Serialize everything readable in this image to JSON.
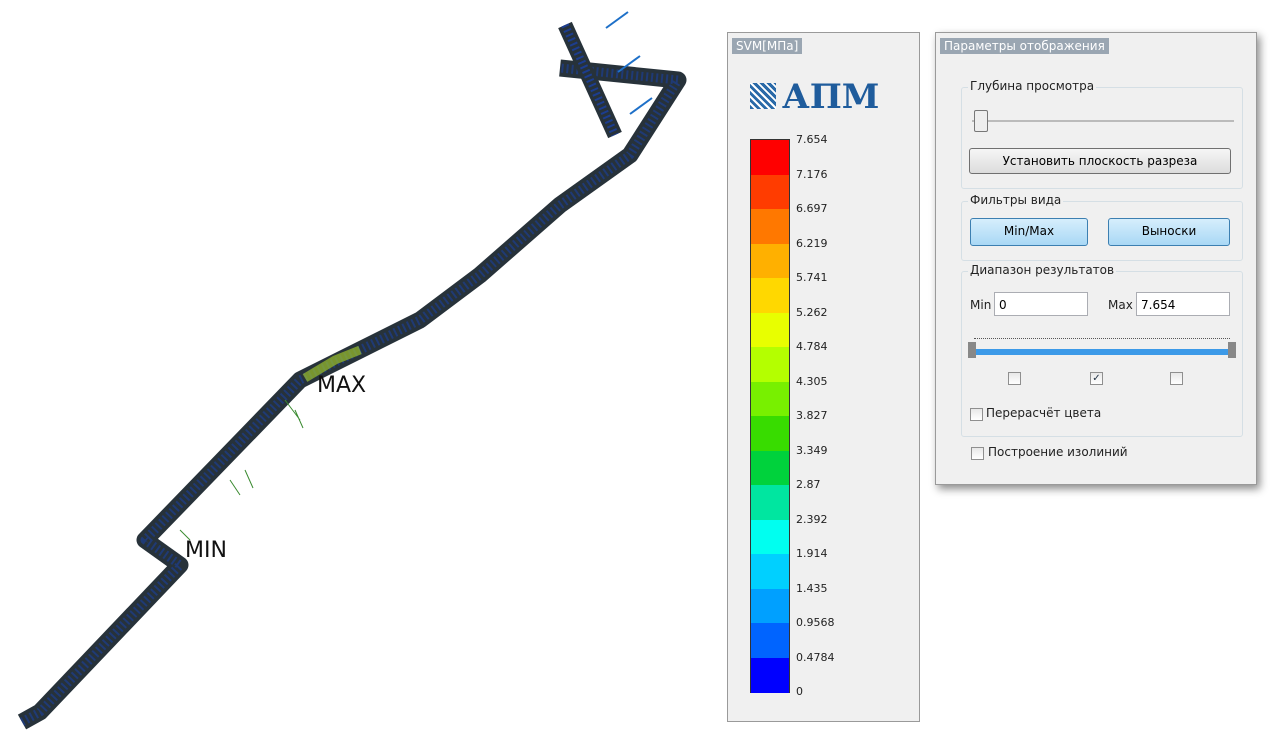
{
  "viewport": {
    "max_label": "MAX",
    "min_label": "MIN"
  },
  "legend": {
    "title": "SVM[МПа]",
    "logo": "АПМ",
    "labels": [
      "7.654",
      "7.176",
      "6.697",
      "6.219",
      "5.741",
      "5.262",
      "4.784",
      "4.305",
      "3.827",
      "3.349",
      "2.87",
      "2.392",
      "1.914",
      "1.435",
      "0.9568",
      "0.4784",
      "0"
    ],
    "band_colors": [
      "#ff0000",
      "#ff3c00",
      "#ff7800",
      "#ffb000",
      "#ffd800",
      "#e8ff00",
      "#b4ff00",
      "#78f000",
      "#38dc00",
      "#00d23c",
      "#00e6a0",
      "#00fff0",
      "#00d0ff",
      "#00a0ff",
      "#0064ff",
      "#0000ff"
    ]
  },
  "params": {
    "title": "Параметры отображения",
    "depth": {
      "title": "Глубина просмотра",
      "button": "Установить плоскость разреза"
    },
    "filters": {
      "title": "Фильтры вида",
      "minmax": "Min/Max",
      "callouts": "Выноски"
    },
    "range": {
      "title": "Диапазон результатов",
      "min_label": "Min",
      "min_value": "0",
      "max_label": "Max",
      "max_value": "7.654",
      "recalc": "Перерасчёт цвета"
    },
    "isolines": "Построение изолиний"
  }
}
